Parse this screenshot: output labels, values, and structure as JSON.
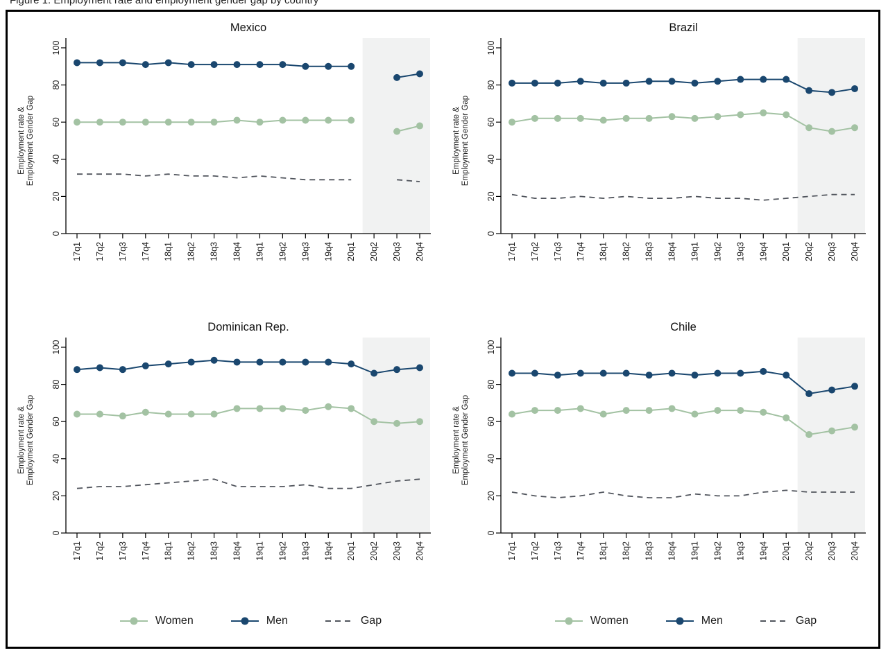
{
  "caption": "Figure 1. Employment rate and employment gender gap by country",
  "colors": {
    "women": "#a3c2a3",
    "men": "#1a476f",
    "gap": "#50545c",
    "shade": "#f1f2f2",
    "axis": "#000000",
    "text": "#1a1a1a"
  },
  "legend": {
    "women": "Women",
    "men": "Men",
    "gap": "Gap"
  },
  "chart_data": {
    "type": "line",
    "categories": [
      "17q1",
      "17q2",
      "17q3",
      "17q4",
      "18q1",
      "18q2",
      "18q3",
      "18q4",
      "19q1",
      "19q2",
      "19q3",
      "19q4",
      "20q1",
      "20q2",
      "20q3",
      "20q4"
    ],
    "ylim": [
      0,
      100
    ],
    "yticks": [
      0,
      20,
      40,
      60,
      80,
      100
    ],
    "ylabel_lines": [
      "Employment rate &",
      "Employment Gender Gap"
    ],
    "shaded_region": {
      "from_index": 12.5,
      "to_index": 15.5
    },
    "panels": [
      {
        "title": "Mexico",
        "series": [
          {
            "name": "Women",
            "values": [
              60,
              60,
              60,
              60,
              60,
              60,
              60,
              61,
              60,
              61,
              61,
              61,
              61,
              null,
              55,
              58
            ]
          },
          {
            "name": "Men",
            "values": [
              92,
              92,
              92,
              91,
              92,
              91,
              91,
              91,
              91,
              91,
              90,
              90,
              90,
              null,
              84,
              86
            ]
          },
          {
            "name": "Gap",
            "values": [
              32,
              32,
              32,
              31,
              32,
              31,
              31,
              30,
              31,
              30,
              29,
              29,
              29,
              null,
              29,
              28
            ]
          }
        ]
      },
      {
        "title": "Brazil",
        "series": [
          {
            "name": "Women",
            "values": [
              60,
              62,
              62,
              62,
              61,
              62,
              62,
              63,
              62,
              63,
              64,
              65,
              64,
              57,
              55,
              57
            ]
          },
          {
            "name": "Men",
            "values": [
              81,
              81,
              81,
              82,
              81,
              81,
              82,
              82,
              81,
              82,
              83,
              83,
              83,
              77,
              76,
              78
            ]
          },
          {
            "name": "Gap",
            "values": [
              21,
              19,
              19,
              20,
              19,
              20,
              19,
              19,
              20,
              19,
              19,
              18,
              19,
              20,
              21,
              21
            ]
          }
        ]
      },
      {
        "title": "Dominican Rep.",
        "series": [
          {
            "name": "Women",
            "values": [
              64,
              64,
              63,
              65,
              64,
              64,
              64,
              67,
              67,
              67,
              66,
              68,
              67,
              60,
              59,
              60
            ]
          },
          {
            "name": "Men",
            "values": [
              88,
              89,
              88,
              90,
              91,
              92,
              93,
              92,
              92,
              92,
              92,
              92,
              91,
              86,
              88,
              89
            ]
          },
          {
            "name": "Gap",
            "values": [
              24,
              25,
              25,
              26,
              27,
              28,
              29,
              25,
              25,
              25,
              26,
              24,
              24,
              26,
              28,
              29
            ]
          }
        ]
      },
      {
        "title": "Chile",
        "series": [
          {
            "name": "Women",
            "values": [
              64,
              66,
              66,
              67,
              64,
              66,
              66,
              67,
              64,
              66,
              66,
              65,
              62,
              53,
              55,
              57
            ]
          },
          {
            "name": "Men",
            "values": [
              86,
              86,
              85,
              86,
              86,
              86,
              85,
              86,
              85,
              86,
              86,
              87,
              85,
              75,
              77,
              79
            ]
          },
          {
            "name": "Gap",
            "values": [
              22,
              20,
              19,
              20,
              22,
              20,
              19,
              19,
              21,
              20,
              20,
              22,
              23,
              22,
              22,
              22
            ]
          }
        ]
      }
    ]
  }
}
